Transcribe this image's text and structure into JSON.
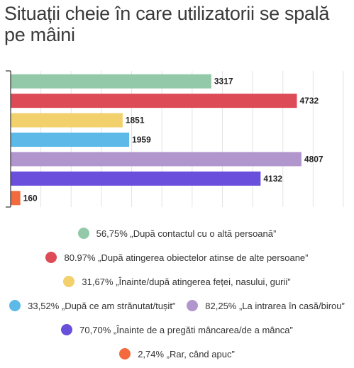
{
  "chart_data": {
    "type": "bar",
    "orientation": "horizontal",
    "title": "Situații cheie în care utilizatorii se spală pe mâini",
    "categories": [
      "56,75% „După contactul cu o altă persoană”",
      "80.97% „După atingerea obiectelor atinse de alte persoane”",
      "31,67% „Înainte/după atingerea feței, nasului, gurii”",
      "33,52% „După ce am strănutat/tușit”",
      "82,25% „La intrarea în casă/birou”",
      "70,70% „Înainte de a pregăti mâncarea/de a mânca”",
      "2,74% „Rar, când apuc”"
    ],
    "values": [
      3317,
      4732,
      1851,
      1959,
      4807,
      4132,
      160
    ],
    "value_labels": [
      "3317",
      "4732",
      "1851",
      "1959",
      "4807",
      "4132",
      "160"
    ],
    "colors": [
      "#93c9a9",
      "#dd4b57",
      "#f2d06b",
      "#5db9e8",
      "#b096cc",
      "#6a4fdc",
      "#f26a3d"
    ],
    "xlim": [
      0,
      5500
    ],
    "grid": true,
    "legend_position": "bottom"
  }
}
